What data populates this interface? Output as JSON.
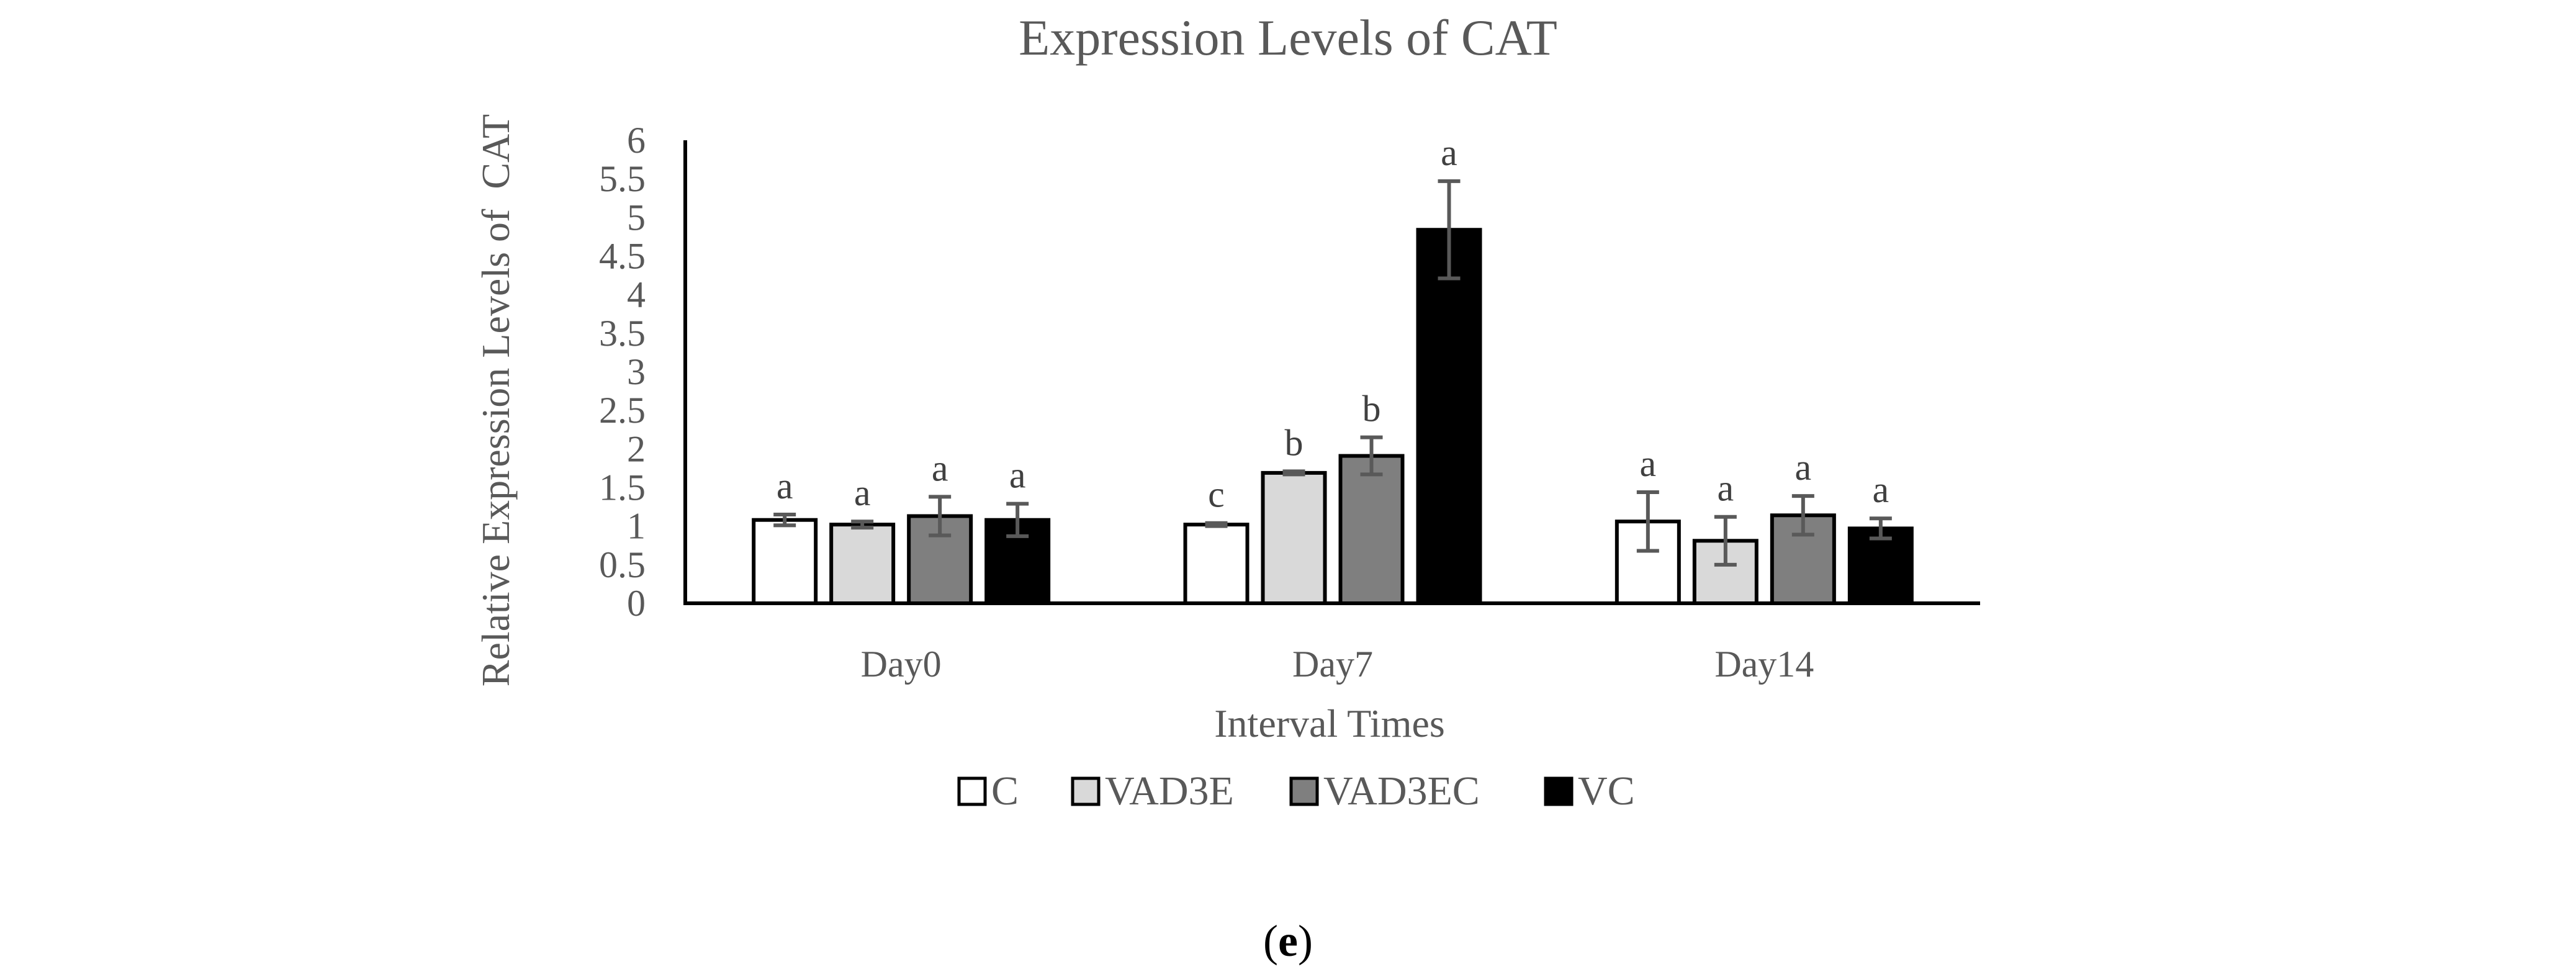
{
  "chart_data": {
    "type": "bar",
    "title": "Expression Levels of CAT",
    "xlabel": "Interval Times",
    "ylabel": "Relative Expression Levels of  CAT",
    "ylim": [
      0,
      6
    ],
    "yticks": [
      "0",
      "0.5",
      "1",
      "1.5",
      "2",
      "2.5",
      "3",
      "3.5",
      "4",
      "4.5",
      "5",
      "5.5",
      "6"
    ],
    "categories": [
      "Day0",
      "Day7",
      "Day14"
    ],
    "legend_position": "bottom",
    "grid": false,
    "series": [
      {
        "name": "C",
        "color": "#ffffff",
        "values": [
          1.08,
          1.02,
          1.06
        ],
        "errors": [
          0.07,
          0.02,
          0.38
        ],
        "significance": [
          "a",
          "c",
          "a"
        ]
      },
      {
        "name": "VAD3E",
        "color": "#d9d9d9",
        "values": [
          1.02,
          1.69,
          0.81
        ],
        "errors": [
          0.04,
          0.02,
          0.31
        ],
        "significance": [
          "a",
          "b",
          "a"
        ]
      },
      {
        "name": "VAD3EC",
        "color": "#7f7f7f",
        "values": [
          1.13,
          1.91,
          1.14
        ],
        "errors": [
          0.25,
          0.24,
          0.25
        ],
        "significance": [
          "a",
          "b",
          "a"
        ]
      },
      {
        "name": "VC",
        "color": "#000000",
        "values": [
          1.08,
          4.84,
          0.97
        ],
        "errors": [
          0.21,
          0.63,
          0.13
        ],
        "significance": [
          "a",
          "a",
          "a"
        ]
      }
    ]
  },
  "panel_label": {
    "open": "(",
    "letter": "e",
    "close": ")"
  }
}
